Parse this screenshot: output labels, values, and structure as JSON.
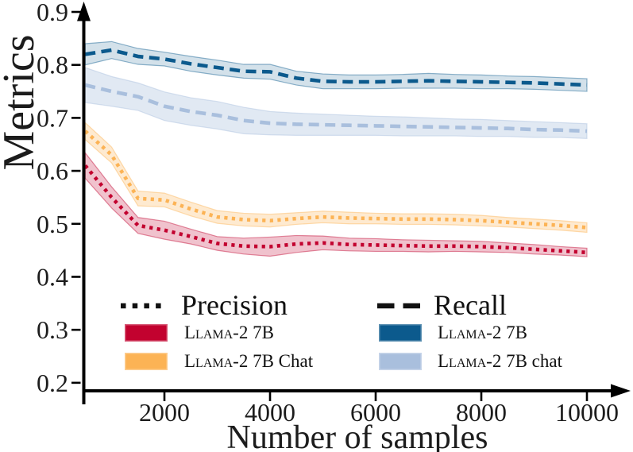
{
  "figure": {
    "background": "#ffffff",
    "text_color": "#1c1c1c",
    "axis_color": "#000000"
  },
  "chart_data": {
    "type": "line",
    "title": "",
    "xlabel": "Number of samples",
    "ylabel": "Metrics",
    "grid": false,
    "xlim": [
      466,
      10797
    ],
    "ylim": [
      0.1848,
      0.9195
    ],
    "x_tick_values": [
      2000,
      4000,
      6000,
      8000,
      10000
    ],
    "y_tick_values": [
      0.2,
      0.3,
      0.4,
      0.5,
      0.6,
      0.7,
      0.8,
      0.9
    ],
    "x": [
      500,
      1000,
      1500,
      2000,
      2500,
      3000,
      3500,
      4000,
      4500,
      5000,
      5500,
      6000,
      6500,
      7000,
      7500,
      8000,
      8500,
      9000,
      9500,
      10000
    ],
    "series": [
      {
        "id": "recall-llama-2-7b",
        "name": "Recall — Llama-2 7B",
        "metric": "Recall",
        "model": "Llama-2 7B",
        "style": "dashed",
        "color": "#0C5A8D",
        "band_opacity": 0.18,
        "values": [
          0.82,
          0.828,
          0.816,
          0.811,
          0.802,
          0.795,
          0.788,
          0.787,
          0.775,
          0.769,
          0.768,
          0.768,
          0.769,
          0.77,
          0.769,
          0.768,
          0.767,
          0.766,
          0.764,
          0.762
        ],
        "band": [
          0.02,
          0.016,
          0.015,
          0.013,
          0.014,
          0.014,
          0.013,
          0.014,
          0.013,
          0.014,
          0.013,
          0.013,
          0.013,
          0.014,
          0.013,
          0.013,
          0.012,
          0.012,
          0.012,
          0.012
        ]
      },
      {
        "id": "recall-llama-2-7b-chat",
        "name": "Recall — Llama-2 7B chat",
        "metric": "Recall",
        "model": "Llama-2 7B chat",
        "style": "dashed",
        "color": "#A9BFDD",
        "band_opacity": 0.35,
        "values": [
          0.762,
          0.75,
          0.74,
          0.722,
          0.712,
          0.705,
          0.695,
          0.69,
          0.688,
          0.687,
          0.686,
          0.685,
          0.684,
          0.683,
          0.682,
          0.681,
          0.68,
          0.678,
          0.677,
          0.675
        ],
        "band": [
          0.033,
          0.028,
          0.026,
          0.027,
          0.026,
          0.026,
          0.025,
          0.022,
          0.021,
          0.02,
          0.019,
          0.018,
          0.018,
          0.017,
          0.016,
          0.016,
          0.015,
          0.015,
          0.014,
          0.014
        ]
      },
      {
        "id": "precision-llama-2-7b-chat",
        "name": "Precision — Llama-2 7B Chat",
        "metric": "Precision",
        "model": "Llama-2 7B Chat",
        "style": "dotted",
        "color": "#FCB355",
        "band_opacity": 0.28,
        "values": [
          0.675,
          0.63,
          0.548,
          0.545,
          0.528,
          0.513,
          0.508,
          0.506,
          0.51,
          0.513,
          0.511,
          0.51,
          0.509,
          0.509,
          0.508,
          0.506,
          0.503,
          0.5,
          0.497,
          0.493
        ],
        "band": [
          0.016,
          0.015,
          0.014,
          0.013,
          0.013,
          0.012,
          0.012,
          0.012,
          0.011,
          0.011,
          0.011,
          0.01,
          0.01,
          0.01,
          0.01,
          0.01,
          0.009,
          0.009,
          0.009,
          0.009
        ]
      },
      {
        "id": "precision-llama-2-7b",
        "name": "Precision — Llama-2 7B",
        "metric": "Precision",
        "model": "Llama-2 7B",
        "style": "dotted",
        "color": "#C2022F",
        "band_opacity": 0.24,
        "values": [
          0.61,
          0.55,
          0.497,
          0.488,
          0.476,
          0.463,
          0.458,
          0.457,
          0.462,
          0.464,
          0.461,
          0.46,
          0.459,
          0.458,
          0.458,
          0.457,
          0.455,
          0.452,
          0.449,
          0.446
        ],
        "band": [
          0.024,
          0.02,
          0.015,
          0.017,
          0.014,
          0.013,
          0.015,
          0.018,
          0.016,
          0.013,
          0.012,
          0.012,
          0.011,
          0.011,
          0.01,
          0.01,
          0.009,
          0.009,
          0.008,
          0.008
        ]
      }
    ],
    "legend": {
      "position": "inside lower area, two columns",
      "columns": [
        {
          "title": "Precision",
          "line_style": "dotted",
          "line_color": "#111111",
          "entries": [
            {
              "label_sc": "Llama-2 7B",
              "label_rest": "",
              "color": "#C2022F"
            },
            {
              "label_sc": "Llama-2 7B",
              "label_rest": " Chat",
              "color": "#FCB355"
            }
          ]
        },
        {
          "title": "Recall",
          "line_style": "dashed",
          "line_color": "#111111",
          "entries": [
            {
              "label_sc": "Llama-2 7B",
              "label_rest": "",
              "color": "#0C5A8D"
            },
            {
              "label_sc": "Llama-2 7B",
              "label_rest": " chat",
              "color": "#A9BFDD"
            }
          ]
        }
      ]
    }
  }
}
